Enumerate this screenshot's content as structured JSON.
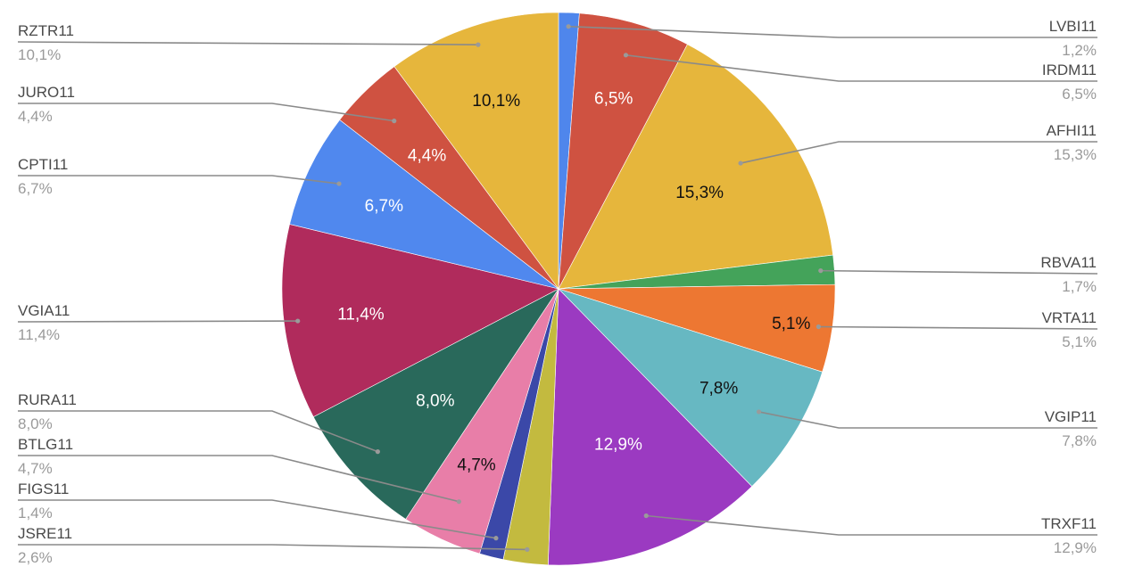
{
  "chart_data": {
    "type": "pie",
    "title": "",
    "slices": [
      {
        "label": "LVBI11",
        "value": 1.2,
        "value_label": "1,2%",
        "color": "#4f86ec",
        "inner_text": "",
        "inner_text_color": "#ffffff"
      },
      {
        "label": "IRDM11",
        "value": 6.5,
        "value_label": "6,5%",
        "color": "#cf5241",
        "inner_text": "6,5%",
        "inner_text_color": "#ffffff"
      },
      {
        "label": "AFHI11",
        "value": 15.3,
        "value_label": "15,3%",
        "color": "#e6b63c",
        "inner_text": "15,3%",
        "inner_text_color": "#111111"
      },
      {
        "label": "RBVA11",
        "value": 1.7,
        "value_label": "1,7%",
        "color": "#44a35a",
        "inner_text": "",
        "inner_text_color": "#ffffff"
      },
      {
        "label": "VRTA11",
        "value": 5.1,
        "value_label": "5,1%",
        "color": "#ed7732",
        "inner_text": "5,1%",
        "inner_text_color": "#111111"
      },
      {
        "label": "VGIP11",
        "value": 7.8,
        "value_label": "7,8%",
        "color": "#67b8c2",
        "inner_text": "7,8%",
        "inner_text_color": "#111111"
      },
      {
        "label": "TRXF11",
        "value": 12.9,
        "value_label": "12,9%",
        "color": "#9b3ac1",
        "inner_text": "12,9%",
        "inner_text_color": "#ffffff"
      },
      {
        "label": "JSRE11",
        "value": 2.6,
        "value_label": "2,6%",
        "color": "#c3ba3f",
        "inner_text": "",
        "inner_text_color": "#ffffff"
      },
      {
        "label": "FIGS11",
        "value": 1.4,
        "value_label": "1,4%",
        "color": "#3b48a8",
        "inner_text": "",
        "inner_text_color": "#ffffff"
      },
      {
        "label": "BTLG11",
        "value": 4.7,
        "value_label": "4,7%",
        "color": "#e87ea8",
        "inner_text": "4,7%",
        "inner_text_color": "#111111"
      },
      {
        "label": "RURA11",
        "value": 8.0,
        "value_label": "8,0%",
        "color": "#29695b",
        "inner_text": "8,0%",
        "inner_text_color": "#ffffff"
      },
      {
        "label": "VGIA11",
        "value": 11.4,
        "value_label": "11,4%",
        "color": "#b02b5c",
        "inner_text": "11,4%",
        "inner_text_color": "#ffffff"
      },
      {
        "label": "CPTI11",
        "value": 6.7,
        "value_label": "6,7%",
        "color": "#5088ee",
        "inner_text": "6,7%",
        "inner_text_color": "#ffffff"
      },
      {
        "label": "JURO11",
        "value": 4.4,
        "value_label": "4,4%",
        "color": "#cf5241",
        "inner_text": "4,4%",
        "inner_text_color": "#ffffff"
      },
      {
        "label": "RZTR11",
        "value": 10.1,
        "value_label": "10,1%",
        "color": "#e6b63c",
        "inner_text": "10,1%",
        "inner_text_color": "#111111"
      }
    ],
    "start_angle": "top",
    "direction": "clockwise",
    "legend": "external labels with leader lines"
  }
}
